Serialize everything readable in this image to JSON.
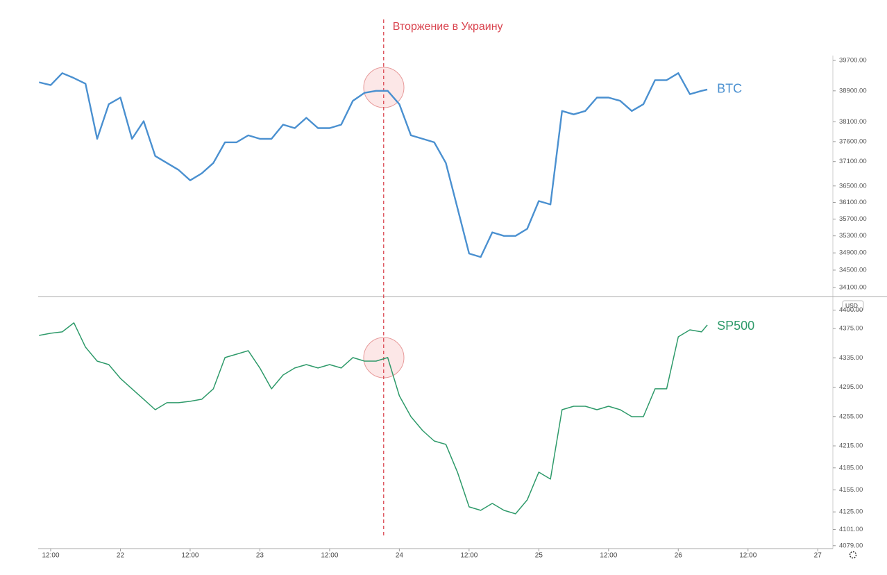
{
  "chart_data": [
    {
      "type": "line",
      "log_scale": true,
      "annotations": [
        {
          "text": "Вторжение в Украину",
          "x": 69.3,
          "color": "#d9434e"
        }
      ],
      "xlim": [
        9.85,
        146.6
      ],
      "x": [
        10,
        12,
        14,
        16,
        18,
        20,
        22,
        24,
        26,
        28,
        30,
        32,
        34,
        36,
        38,
        40,
        42,
        44,
        46,
        48,
        50,
        52,
        54,
        56,
        58,
        60,
        62,
        64,
        66,
        68,
        70,
        72,
        74,
        76,
        78,
        80,
        82,
        84,
        86,
        88,
        90,
        92,
        94,
        96,
        98,
        100,
        102,
        104,
        106,
        108,
        110,
        112,
        114,
        116,
        118,
        120,
        122,
        124,
        125
      ],
      "series": [
        {
          "name": "BTC",
          "color": "#4a90d0",
          "values": [
            39123,
            39049,
            39365,
            39235,
            39086,
            37671,
            38552,
            38726,
            37671,
            38117,
            37238,
            37066,
            36895,
            36637,
            36809,
            37066,
            37583,
            37583,
            37757,
            37671,
            37671,
            38029,
            37940,
            38205,
            37940,
            37940,
            38029,
            38640,
            38848,
            38900,
            38900,
            38552,
            37757,
            37671,
            37583,
            37066,
            35967,
            34884,
            34804,
            35383,
            35300,
            35300,
            35467,
            36133,
            36050,
            38379,
            38292,
            38379,
            38726,
            38726,
            38640,
            38379,
            38552,
            39179,
            39179,
            39365,
            38813,
            38900,
            38935
          ]
        }
      ],
      "ylim": [
        33895,
        39830
      ],
      "yticks": [
        {
          "value": 39700,
          "label": "39700.00"
        },
        {
          "value": 38900,
          "label": "38900.00"
        },
        {
          "value": 38100,
          "label": "38100.00"
        },
        {
          "value": 37600,
          "label": "37600.00"
        },
        {
          "value": 37100,
          "label": "37100.00"
        },
        {
          "value": 36500,
          "label": "36500.00"
        },
        {
          "value": 36100,
          "label": "36100.00"
        },
        {
          "value": 35700,
          "label": "35700.00"
        },
        {
          "value": 35300,
          "label": "35300.00"
        },
        {
          "value": 34900,
          "label": "34900.00"
        },
        {
          "value": 34500,
          "label": "34500.00"
        },
        {
          "value": 34100,
          "label": "34100.00"
        }
      ]
    },
    {
      "type": "line",
      "currency": "USD",
      "xlim": [
        9.85,
        146.6
      ],
      "xticks": [
        {
          "value": 12,
          "label": "12:00"
        },
        {
          "value": 24,
          "label": "22"
        },
        {
          "value": 36,
          "label": "12:00"
        },
        {
          "value": 48,
          "label": "23"
        },
        {
          "value": 60,
          "label": "12:00"
        },
        {
          "value": 72,
          "label": "24"
        },
        {
          "value": 84,
          "label": "12:00"
        },
        {
          "value": 96,
          "label": "25"
        },
        {
          "value": 108,
          "label": "12:00"
        },
        {
          "value": 120,
          "label": "26"
        },
        {
          "value": 132,
          "label": "12:00"
        },
        {
          "value": 144,
          "label": "27"
        }
      ],
      "x": [
        10,
        12,
        14,
        16,
        18,
        20,
        22,
        24,
        26,
        28,
        30,
        32,
        34,
        36,
        38,
        40,
        42,
        44,
        46,
        48,
        50,
        52,
        54,
        56,
        58,
        60,
        62,
        64,
        66,
        68,
        70,
        72,
        74,
        76,
        78,
        80,
        82,
        84,
        86,
        88,
        90,
        92,
        94,
        96,
        98,
        100,
        102,
        104,
        106,
        108,
        110,
        112,
        114,
        116,
        118,
        120,
        122,
        124,
        125
      ],
      "series": [
        {
          "name": "SP500",
          "color": "#2e9a6a",
          "values": [
            4365.5,
            4368.4,
            4370.3,
            4382.6,
            4349.5,
            4330.5,
            4325.8,
            4306.9,
            4292.7,
            4278.5,
            4264.3,
            4273.8,
            4273.8,
            4275.7,
            4278.5,
            4292.7,
            4335.3,
            4340,
            4344.7,
            4321.1,
            4292.7,
            4311.6,
            4321.1,
            4325.8,
            4321.1,
            4325.8,
            4321.1,
            4335.3,
            4330.5,
            4330.5,
            4335.3,
            4283.2,
            4254.8,
            4235.9,
            4221.7,
            4217,
            4179.2,
            4131.9,
            4127.1,
            4136.6,
            4127.1,
            4122.4,
            4141.3,
            4179.2,
            4169.7,
            4264.3,
            4269,
            4269,
            4264.3,
            4269,
            4264.3,
            4254.8,
            4254.8,
            4292.7,
            4292.7,
            4363.6,
            4373.1,
            4370.3,
            4379.7
          ]
        }
      ],
      "ylim": [
        4075,
        4418.5
      ],
      "yticks": [
        {
          "value": 4400,
          "label": "4400.00"
        },
        {
          "value": 4375,
          "label": "4375.00"
        },
        {
          "value": 4335,
          "label": "4335.00"
        },
        {
          "value": 4295,
          "label": "4295.00"
        },
        {
          "value": 4255,
          "label": "4255.00"
        },
        {
          "value": 4215,
          "label": "4215.00"
        },
        {
          "value": 4185,
          "label": "4185.00"
        },
        {
          "value": 4155,
          "label": "4155.00"
        },
        {
          "value": 4125,
          "label": "4125.00"
        },
        {
          "value": 4101,
          "label": "4101.00"
        },
        {
          "value": 4079,
          "label": "4079.00"
        }
      ]
    }
  ]
}
